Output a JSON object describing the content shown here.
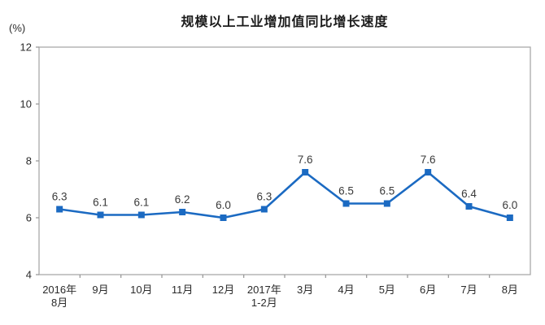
{
  "colors": {
    "background": "#ffffff",
    "line": "#1b6ac2",
    "marker": "#1b6ac2",
    "frame": "#a9a9a9",
    "tick": "#9b9b9b",
    "title_text": "#1a1a1a",
    "axis_text": "#2b2b2b",
    "data_label_text": "#3a3a3a"
  },
  "chart_data": {
    "type": "line",
    "title": "规模以上工业增加值同比增长速度",
    "unit_label": "(%)",
    "categories": [
      "2016年\n8月",
      "9月",
      "10月",
      "11月",
      "12月",
      "2017年\n1-2月",
      "3月",
      "4月",
      "5月",
      "6月",
      "7月",
      "8月"
    ],
    "values": [
      6.3,
      6.1,
      6.1,
      6.2,
      6.0,
      6.3,
      7.6,
      6.5,
      6.5,
      7.6,
      6.4,
      6.0
    ],
    "yticks": [
      4,
      6,
      8,
      10,
      12
    ],
    "ylim": [
      4,
      12
    ],
    "grid": false,
    "legend": false,
    "marker": "square",
    "data_labels": true,
    "xlabel": "",
    "ylabel": ""
  }
}
